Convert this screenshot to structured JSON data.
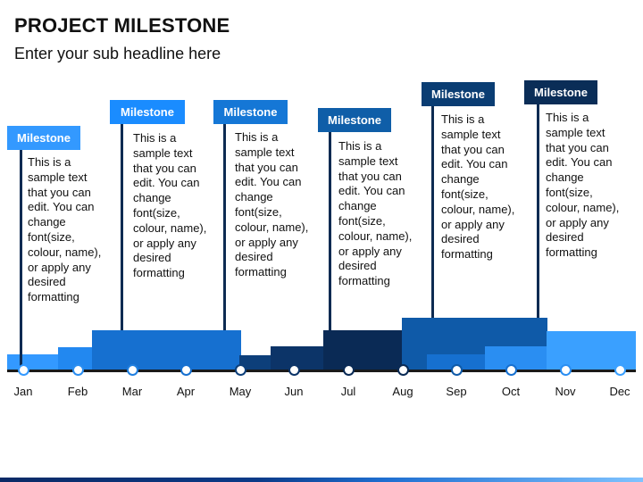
{
  "header": {
    "title": "PROJECT MILESTONE",
    "subtitle": "Enter your sub headline here"
  },
  "timeline": {
    "months": [
      "Jan",
      "Feb",
      "Mar",
      "Apr",
      "May",
      "Jun",
      "Jul",
      "Aug",
      "Sep",
      "Oct",
      "Nov",
      "Dec"
    ]
  },
  "milestones": [
    {
      "label": "Milestone",
      "text": "This is a\nsample text\nthat you can\nedit. You can\nchange\nfont(size,\ncolour, name),\nor apply any\ndesired\nformatting",
      "color": "#3399ff"
    },
    {
      "label": "Milestone",
      "text": "This is a\nsample text\nthat you can\nedit. You can\nchange\nfont(size,\ncolour, name),\nor apply any\ndesired\nformatting",
      "color": "#1a8cff"
    },
    {
      "label": "Milestone",
      "text": "This is a\nsample text\nthat you can\nedit. You can\nchange\nfont(size,\ncolour, name),\nor apply any\ndesired\nformatting",
      "color": "#1577d6"
    },
    {
      "label": "Milestone",
      "text": "This is a\nsample text\nthat you can\nedit. You can\nchange\nfont(size,\ncolour, name),\nor apply any\ndesired\nformatting",
      "color": "#0f5ea8"
    },
    {
      "label": "Milestone",
      "text": "This is a\nsample text\nthat you can\nedit. You can\nchange\nfont(size,\ncolour, name),\nor apply any\ndesired\nformatting",
      "color": "#0a3d73"
    },
    {
      "label": "Milestone",
      "text": "This is a\nsample text\nthat you can\nedit. You can\nchange\nfont(size,\ncolour, name),\nor apply any\ndesired\nformatting",
      "color": "#0a2d57"
    }
  ]
}
